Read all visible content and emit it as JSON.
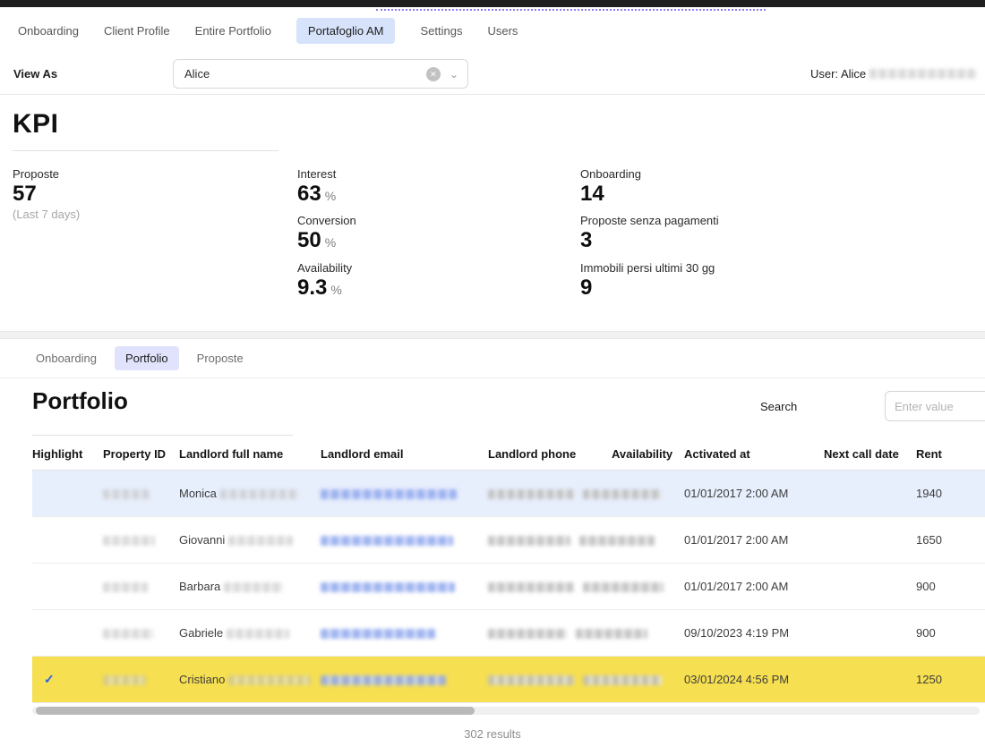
{
  "nav": {
    "tabs": [
      {
        "label": "Onboarding",
        "selected": false
      },
      {
        "label": "Client Profile",
        "selected": false
      },
      {
        "label": "Entire Portfolio",
        "selected": false
      },
      {
        "label": "Portafoglio AM",
        "selected": true
      },
      {
        "label": "Settings",
        "selected": false
      },
      {
        "label": "Users",
        "selected": false
      }
    ]
  },
  "view_as": {
    "label": "View As",
    "value": "Alice",
    "user_label": "User: Alice"
  },
  "kpi": {
    "title": "KPI",
    "items": [
      {
        "label": "Proposte",
        "value": "57",
        "sub": "(Last 7 days)"
      },
      {
        "label": "Interest",
        "value": "63",
        "unit": "%"
      },
      {
        "label": "Conversion",
        "value": "50",
        "unit": "%"
      },
      {
        "label": "Availability",
        "value": "9.3",
        "unit": "%"
      },
      {
        "label": "Onboarding",
        "value": "14"
      },
      {
        "label": "Proposte senza pagamenti",
        "value": "3"
      },
      {
        "label": "Immobili persi ultimi 30 gg",
        "value": "9"
      }
    ]
  },
  "portfolio": {
    "tabs": [
      {
        "label": "Onboarding",
        "selected": false
      },
      {
        "label": "Portfolio",
        "selected": true
      },
      {
        "label": "Proposte",
        "selected": false
      }
    ],
    "title": "Portfolio",
    "search_label": "Search",
    "search_placeholder": "Enter value",
    "table": {
      "columns": [
        "Highlight",
        "Property ID",
        "Landlord full name",
        "Landlord email",
        "Landlord phone",
        "Availability",
        "Activated at",
        "Next call date",
        "Rent"
      ],
      "rows": [
        {
          "highlight": false,
          "first_name": "Monica",
          "availability": "",
          "activated_at": "01/01/2017 2:00 AM",
          "next_call_date": "",
          "rent": "1940",
          "row_style": "selected-blue"
        },
        {
          "highlight": false,
          "first_name": "Giovanni",
          "availability": "",
          "activated_at": "01/01/2017 2:00 AM",
          "next_call_date": "",
          "rent": "1650",
          "row_style": "none"
        },
        {
          "highlight": false,
          "first_name": "Barbara",
          "availability": "",
          "activated_at": "01/01/2017 2:00 AM",
          "next_call_date": "",
          "rent": "900",
          "row_style": "none"
        },
        {
          "highlight": false,
          "first_name": "Gabriele",
          "availability": "",
          "activated_at": "09/10/2023 4:19 PM",
          "next_call_date": "",
          "rent": "900",
          "row_style": "none"
        },
        {
          "highlight": true,
          "first_name": "Cristiano",
          "availability": "",
          "activated_at": "03/01/2024 4:56 PM",
          "next_call_date": "",
          "rent": "1250",
          "row_style": "highlight-yellow"
        }
      ]
    },
    "results_text": "302 results"
  },
  "icons": {
    "clear": "✕",
    "chevron_down": "⌄",
    "check": "✓"
  },
  "colors": {
    "nav_selected_bg": "#d7e3fb",
    "tab_pill_bg": "#e0e3fb",
    "row_selected_bg": "#e7eefc",
    "row_highlight_bg": "#f6df50",
    "check_color": "#2563eb",
    "drop_indicator": "#8b7bf0",
    "topbar": "#1f1f1f"
  }
}
